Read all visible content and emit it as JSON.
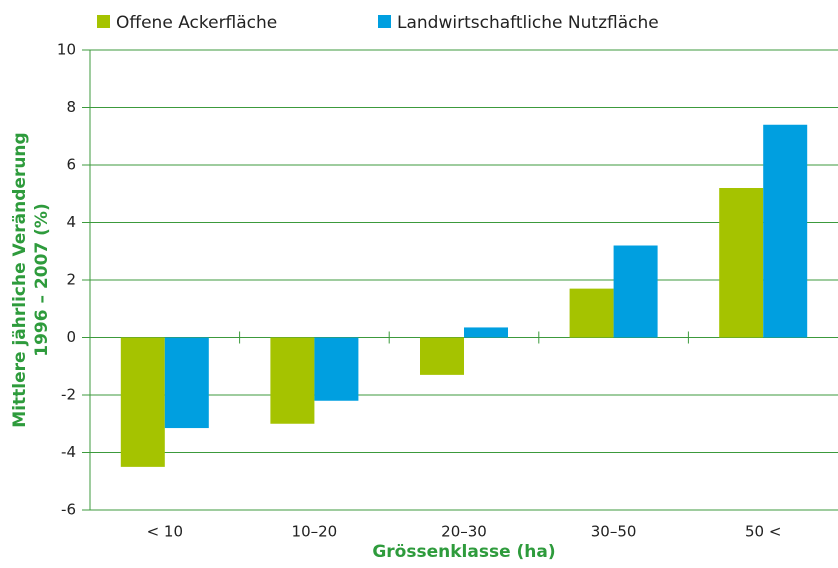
{
  "chart_data": {
    "type": "bar",
    "x_label": "Grössenklasse (ha)",
    "y_label": [
      "Mittlere jährliche Veränderung",
      "1996 – 2007 (%)"
    ],
    "categories": [
      "< 10",
      "10–20",
      "20–30",
      "30–50",
      "50 <"
    ],
    "series": [
      {
        "name": "Offene Ackerfläche",
        "color": "#a5c300",
        "values": [
          -4.5,
          -3.0,
          -1.3,
          1.7,
          5.2
        ]
      },
      {
        "name": "Landwirtschaftliche Nutzfläche",
        "color": "#009fe0",
        "values": [
          -3.15,
          -2.2,
          0.35,
          3.2,
          7.4
        ]
      }
    ],
    "ylim": [
      -6,
      10
    ],
    "yticks": [
      -6,
      -4,
      -2,
      0,
      2,
      4,
      6,
      8,
      10
    ],
    "grid": true,
    "legend": "top"
  }
}
